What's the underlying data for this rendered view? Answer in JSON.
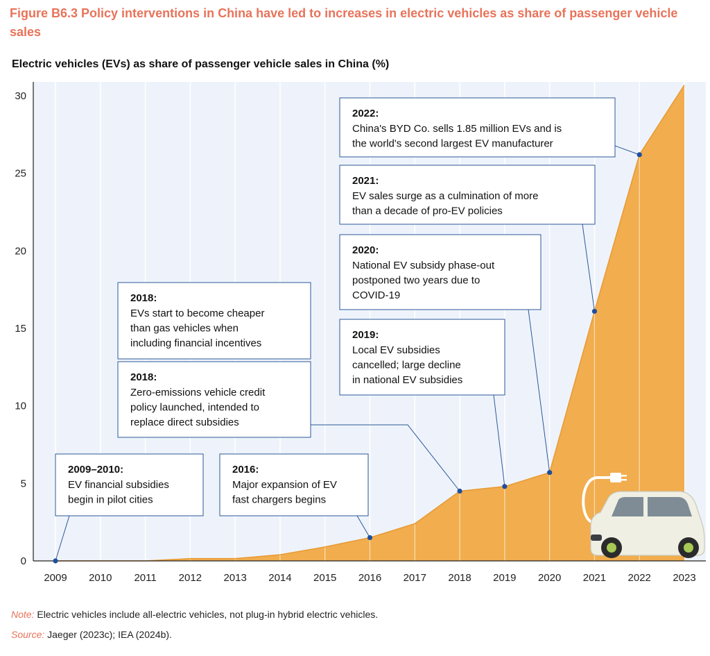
{
  "figure": {
    "title": "Figure B6.3 Policy interventions in China have led to increases in electric vehicles as share of passenger vehicle sales",
    "subtitle": "Electric vehicles (EVs) as share of passenger vehicle sales in China (%)"
  },
  "footer": {
    "note_label": "Note:",
    "note_text": "Electric vehicles include all-electric vehicles, not plug-in hybrid electric vehicles.",
    "source_label": "Source:",
    "source_text": "Jaeger (2023c); IEA (2024b)."
  },
  "colors": {
    "area_fill": "#f1ad4e",
    "marker": "#1f4f9c",
    "title": "#e8735a",
    "plot_bg": "#eef3fb",
    "callout_border": "#2b5797"
  },
  "chart_data": {
    "type": "area",
    "title": "Electric vehicles (EVs) as share of passenger vehicle sales in China (%)",
    "xlabel": "",
    "ylabel": "",
    "x": [
      2009,
      2010,
      2011,
      2012,
      2013,
      2014,
      2015,
      2016,
      2017,
      2018,
      2019,
      2020,
      2021,
      2022,
      2023
    ],
    "y": [
      0.0,
      0.0,
      0.0,
      0.15,
      0.15,
      0.4,
      0.9,
      1.5,
      2.4,
      4.5,
      4.8,
      5.7,
      16.1,
      26.2,
      30.7
    ],
    "xlim": [
      2009,
      2023
    ],
    "ylim": [
      0,
      30
    ],
    "yticks": [
      0,
      5,
      10,
      15,
      20,
      25,
      30
    ],
    "grid": "vertical",
    "markers": [
      2009,
      2016,
      2018,
      2019,
      2020,
      2021,
      2022
    ],
    "annotations": [
      {
        "id": "a2009",
        "year_label": "2009–2010:",
        "lines": [
          "EV financial subsidies",
          "begin in pilot cities"
        ],
        "target_year": 2009
      },
      {
        "id": "a2016",
        "year_label": "2016:",
        "lines": [
          "Major expansion of EV",
          "fast chargers begins"
        ],
        "target_year": 2016
      },
      {
        "id": "a2018b",
        "year_label": "2018:",
        "lines": [
          "Zero-emissions vehicle credit",
          "policy launched, intended to",
          "replace direct subsidies"
        ],
        "target_year": 2018
      },
      {
        "id": "a2018a",
        "year_label": "2018:",
        "lines": [
          "EVs start to become cheaper",
          "than gas vehicles when",
          "including financial incentives"
        ],
        "target_year": 2018
      },
      {
        "id": "a2019",
        "year_label": "2019:",
        "lines": [
          "Local EV subsidies",
          "cancelled; large decline",
          "in national EV subsidies"
        ],
        "target_year": 2019
      },
      {
        "id": "a2020",
        "year_label": "2020:",
        "lines": [
          "National EV subsidy phase-out",
          "postponed two years due to",
          "COVID-19"
        ],
        "target_year": 2020
      },
      {
        "id": "a2021",
        "year_label": "2021:",
        "lines": [
          "EV sales surge as a culmination of more",
          "than a decade of pro-EV policies"
        ],
        "target_year": 2021
      },
      {
        "id": "a2022",
        "year_label": "2022:",
        "lines": [
          "China's BYD Co. sells 1.85 million EVs and is",
          "the world's second largest EV manufacturer"
        ],
        "target_year": 2022
      }
    ]
  }
}
